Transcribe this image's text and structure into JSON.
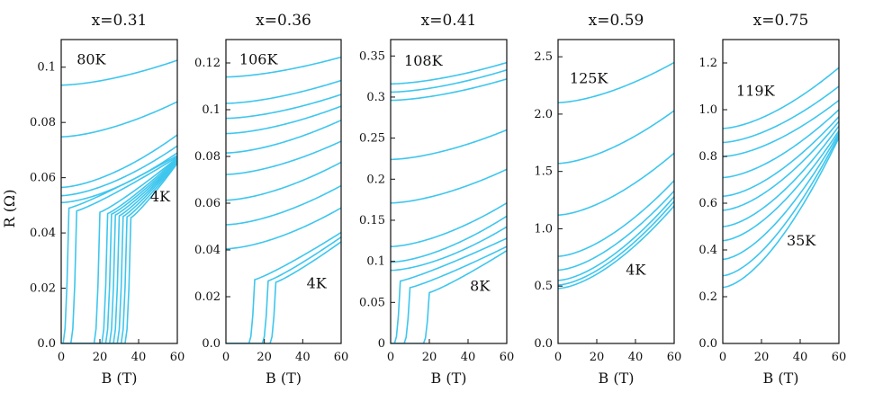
{
  "figure": {
    "ylabel": "R (Ω)",
    "xlabel": "B  (T)",
    "series_color": "#3ec6ee"
  },
  "chart_data": [
    {
      "type": "line",
      "title": "x=0.31",
      "xlabel": "B  (T)",
      "ylabel": "R (Ω)",
      "xlim": [
        0,
        60
      ],
      "ylim": [
        0,
        0.11
      ],
      "xticks": [
        "0",
        "20",
        "40",
        "60"
      ],
      "yticks": [
        "0.0",
        "0.02",
        "0.04",
        "0.06",
        "0.08",
        "0.1"
      ],
      "annotations": [
        {
          "text": "80K",
          "x": 8,
          "y": 0.101
        },
        {
          "text": "4K",
          "x": 46,
          "y": 0.0515
        }
      ],
      "series": [
        {
          "name": "80K",
          "start": 0.0935,
          "end": 0.1025
        },
        {
          "name": "c2",
          "start": 0.0748,
          "end": 0.0875
        },
        {
          "name": "c3",
          "start": 0.0565,
          "end": 0.0755
        },
        {
          "name": "c4",
          "start": 0.0535,
          "end": 0.0715
        },
        {
          "name": "c5",
          "start": 0.051,
          "end": 0.069
        },
        {
          "name": "c6",
          "start": 0.049,
          "end": 0.068,
          "Bc": 4
        },
        {
          "name": "c7",
          "start": 0.048,
          "end": 0.0675,
          "Bc": 8
        },
        {
          "name": "c8",
          "start": 0.0475,
          "end": 0.0672,
          "Bc": 20
        },
        {
          "name": "c9",
          "start": 0.047,
          "end": 0.067,
          "Bc": 24
        },
        {
          "name": "c10",
          "start": 0.0468,
          "end": 0.0665,
          "Bc": 26
        },
        {
          "name": "c11",
          "start": 0.0465,
          "end": 0.0662,
          "Bc": 28
        },
        {
          "name": "c12",
          "start": 0.0462,
          "end": 0.066,
          "Bc": 30
        },
        {
          "name": "c13",
          "start": 0.046,
          "end": 0.0658,
          "Bc": 32
        },
        {
          "name": "c14",
          "start": 0.0458,
          "end": 0.0655,
          "Bc": 34
        },
        {
          "name": "4K",
          "start": 0.0455,
          "end": 0.0652,
          "Bc": 36
        }
      ]
    },
    {
      "type": "line",
      "title": "x=0.36",
      "xlabel": "B  (T)",
      "xlim": [
        0,
        60
      ],
      "ylim": [
        0,
        0.13
      ],
      "xticks": [
        "0",
        "20",
        "40",
        "60"
      ],
      "yticks": [
        "0.0",
        "0.02",
        "0.04",
        "0.06",
        "0.08",
        "0.1",
        "0.12"
      ],
      "annotations": [
        {
          "text": "106K",
          "x": 7,
          "y": 0.1195
        },
        {
          "text": "4K",
          "x": 42,
          "y": 0.0237
        }
      ],
      "series": [
        {
          "name": "106K",
          "start": 0.114,
          "end": 0.1225
        },
        {
          "name": "c2",
          "start": 0.1027,
          "end": 0.1125
        },
        {
          "name": "c3",
          "start": 0.0963,
          "end": 0.1065
        },
        {
          "name": "c4",
          "start": 0.0898,
          "end": 0.1015
        },
        {
          "name": "c5",
          "start": 0.0815,
          "end": 0.0955
        },
        {
          "name": "c6",
          "start": 0.0723,
          "end": 0.0865
        },
        {
          "name": "c7",
          "start": 0.0613,
          "end": 0.0775
        },
        {
          "name": "c8",
          "start": 0.0508,
          "end": 0.0675
        },
        {
          "name": "c9",
          "start": 0.0405,
          "end": 0.058
        },
        {
          "name": "c10",
          "start": 0.0273,
          "end": 0.0475,
          "Bc": 15
        },
        {
          "name": "c11",
          "start": 0.0268,
          "end": 0.0455,
          "Bc": 22
        },
        {
          "name": "4K",
          "start": 0.0262,
          "end": 0.0435,
          "Bc": 26
        }
      ]
    },
    {
      "type": "line",
      "title": "x=0.41",
      "xlabel": "B  (T)",
      "xlim": [
        0,
        60
      ],
      "ylim": [
        0,
        0.37
      ],
      "xticks": [
        "0",
        "20",
        "40",
        "60"
      ],
      "yticks": [
        "0",
        "0.05",
        "0.1",
        "0.15",
        "0.2",
        "0.25",
        "0.3",
        "0.35"
      ],
      "annotations": [
        {
          "text": "108K",
          "x": 7,
          "y": 0.338
        },
        {
          "text": "8K",
          "x": 41,
          "y": 0.064
        }
      ],
      "series": [
        {
          "name": "108K",
          "start": 0.316,
          "end": 0.342
        },
        {
          "name": "c2",
          "start": 0.306,
          "end": 0.333
        },
        {
          "name": "c3",
          "start": 0.296,
          "end": 0.322
        },
        {
          "name": "c4",
          "start": 0.224,
          "end": 0.26
        },
        {
          "name": "c5",
          "start": 0.171,
          "end": 0.212
        },
        {
          "name": "c6",
          "start": 0.118,
          "end": 0.171
        },
        {
          "name": "c7",
          "start": 0.099,
          "end": 0.155
        },
        {
          "name": "c8",
          "start": 0.089,
          "end": 0.142
        },
        {
          "name": "c9",
          "start": 0.076,
          "end": 0.128,
          "Bc": 5
        },
        {
          "name": "c10",
          "start": 0.068,
          "end": 0.118,
          "Bc": 10
        },
        {
          "name": "8K",
          "start": 0.062,
          "end": 0.113,
          "Bc": 20
        }
      ]
    },
    {
      "type": "line",
      "title": "x=0.59",
      "xlabel": "B  (T)",
      "xlim": [
        0,
        60
      ],
      "ylim": [
        0,
        2.65
      ],
      "xticks": [
        "0",
        "20",
        "40",
        "60"
      ],
      "yticks": [
        "0.0",
        "0.5",
        "1.0",
        "1.5",
        "2.0",
        "2.5"
      ],
      "annotations": [
        {
          "text": "125K",
          "x": 6,
          "y": 2.27
        },
        {
          "text": "4K",
          "x": 35,
          "y": 0.6
        }
      ],
      "series": [
        {
          "name": "125K",
          "start": 2.1,
          "end": 2.45
        },
        {
          "name": "c2",
          "start": 1.57,
          "end": 2.03
        },
        {
          "name": "c3",
          "start": 1.12,
          "end": 1.66
        },
        {
          "name": "c4",
          "start": 0.76,
          "end": 1.42
        },
        {
          "name": "c5",
          "start": 0.64,
          "end": 1.33
        },
        {
          "name": "c6",
          "start": 0.55,
          "end": 1.28
        },
        {
          "name": "c7",
          "start": 0.51,
          "end": 1.24
        },
        {
          "name": "4K",
          "start": 0.48,
          "end": 1.2
        }
      ]
    },
    {
      "type": "line",
      "title": "x=0.75",
      "xlabel": "B  (T)",
      "xlim": [
        0,
        60
      ],
      "ylim": [
        0,
        1.3
      ],
      "xticks": [
        "0",
        "20",
        "40",
        "60"
      ],
      "yticks": [
        "0.0",
        "0.2",
        "0.4",
        "0.6",
        "0.8",
        "1.0",
        "1.2"
      ],
      "annotations": [
        {
          "text": "119K",
          "x": 7,
          "y": 1.06
        },
        {
          "text": "35K",
          "x": 33,
          "y": 0.42
        }
      ],
      "series": [
        {
          "name": "119K",
          "start": 0.92,
          "end": 1.18
        },
        {
          "name": "c2",
          "start": 0.86,
          "end": 1.1
        },
        {
          "name": "c3",
          "start": 0.8,
          "end": 1.04
        },
        {
          "name": "c4",
          "start": 0.71,
          "end": 1.0
        },
        {
          "name": "c5",
          "start": 0.63,
          "end": 0.97
        },
        {
          "name": "c6",
          "start": 0.57,
          "end": 0.95
        },
        {
          "name": "c7",
          "start": 0.5,
          "end": 0.93
        },
        {
          "name": "c8",
          "start": 0.44,
          "end": 0.91
        },
        {
          "name": "c9",
          "start": 0.36,
          "end": 0.9
        },
        {
          "name": "c10",
          "start": 0.29,
          "end": 0.89
        },
        {
          "name": "35K",
          "start": 0.24,
          "end": 0.88
        }
      ]
    }
  ]
}
